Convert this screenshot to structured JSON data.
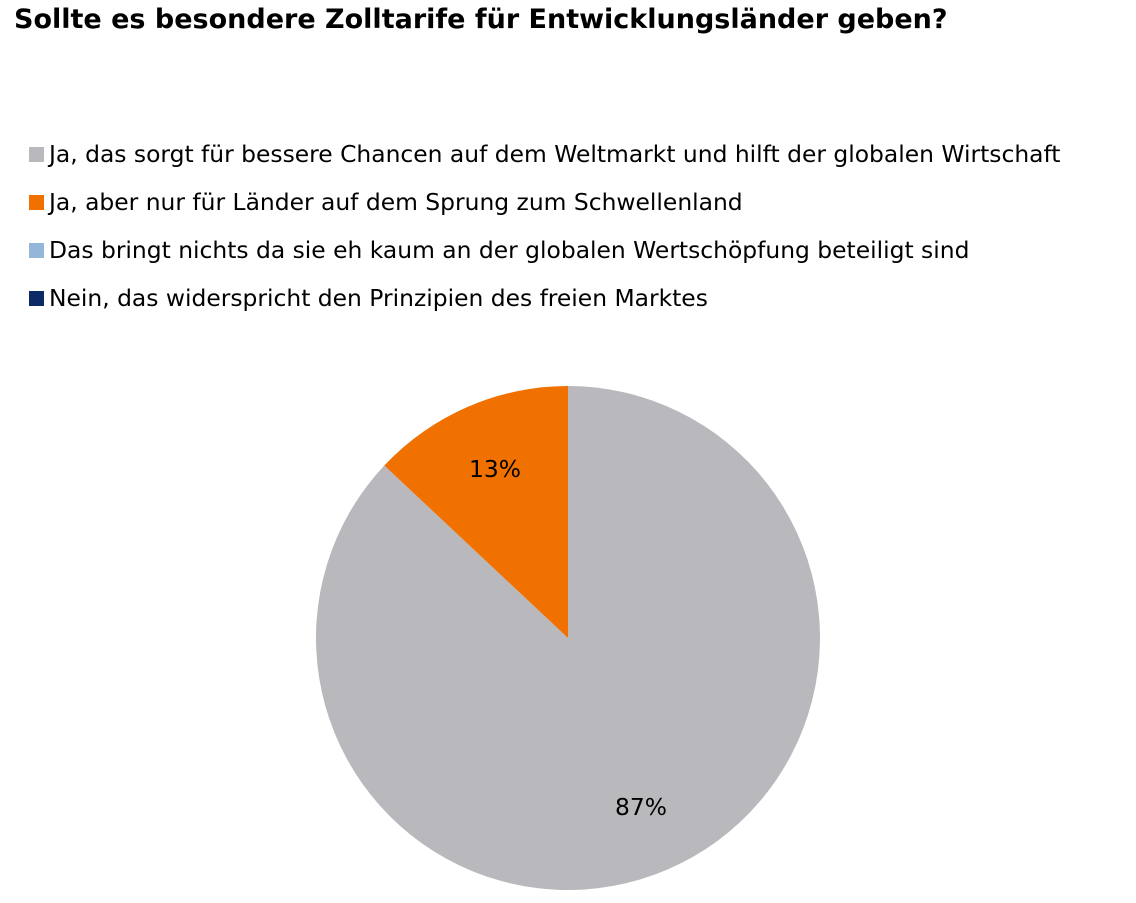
{
  "chart_data": {
    "type": "pie",
    "title": "Sollte es besondere Zolltarife für Entwicklungsländer geben?",
    "legend_position": "top",
    "categories": [
      "Ja, das sorgt für bessere Chancen auf dem Weltmarkt und hilft der globalen Wirtschaft",
      "Ja, aber nur für Länder auf dem Sprung zum Schwellenland",
      "Das bringt nichts da sie eh kaum an der globalen Wertschöpfung beteiligt sind",
      "Nein, das widerspricht den Prinzipien des freien Marktes"
    ],
    "values": [
      87,
      13,
      0,
      0
    ],
    "data_labels": [
      "87%",
      "13%",
      "",
      ""
    ],
    "colors": [
      "#b8b8bd",
      "#f07000",
      "#94b6d8",
      "#0b2a66"
    ]
  }
}
